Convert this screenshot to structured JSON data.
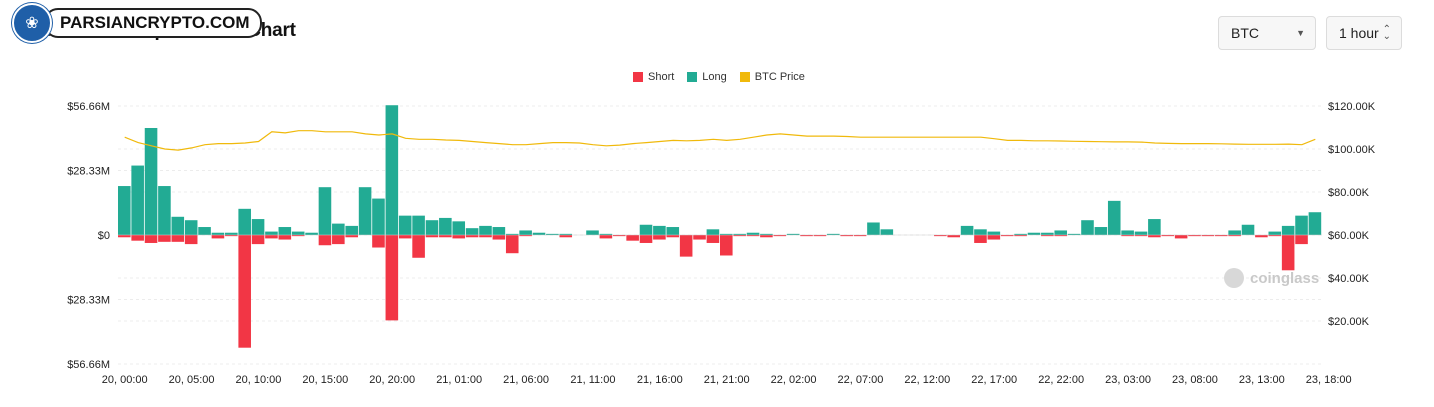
{
  "header": {
    "title": "BTC Total Liquidations Chart",
    "watermark_logo_text": "PARSIANCRYPTO.COM",
    "coin_select": "BTC",
    "interval_select": "1 hour"
  },
  "icons": {
    "coin_caret": "caret-down-icon",
    "interval_stepper": "up-down-icon",
    "logo": "tree-logo-icon",
    "watermark": "coinglass-logo-icon"
  },
  "watermark": "coinglass",
  "colors": {
    "short": "#f23645",
    "long": "#22ab94",
    "price": "#f0b90b"
  },
  "chart_data": {
    "type": "bar",
    "title": "BTC Total Liquidations Chart",
    "legend": [
      "Short",
      "Long",
      "BTC Price"
    ],
    "legend_position": "top-center",
    "grid": true,
    "y_left_ticks": [
      "$56.66M",
      "$28.33M",
      "$0",
      "$28.33M",
      "$56.66M"
    ],
    "y_left_range": [
      -56.66,
      56.66
    ],
    "y_right_ticks": [
      "$120.00K",
      "$100.00K",
      "$80.00K",
      "$60.00K",
      "$40.00K",
      "$20.00K"
    ],
    "y_right_range": [
      0,
      120000
    ],
    "x_ticks": [
      "20, 00:00",
      "20, 05:00",
      "20, 10:00",
      "20, 15:00",
      "20, 20:00",
      "21, 01:00",
      "21, 06:00",
      "21, 11:00",
      "21, 16:00",
      "21, 21:00",
      "22, 02:00",
      "22, 07:00",
      "22, 12:00",
      "22, 17:00",
      "22, 22:00",
      "23, 03:00",
      "23, 08:00",
      "23, 13:00",
      "23, 18:00"
    ],
    "bar_step_hours": 1,
    "series": [
      {
        "name": "Long",
        "unit": "M USD",
        "values": [
          21.5,
          30.5,
          47,
          21.5,
          8,
          6.5,
          3.5,
          1,
          1,
          11.5,
          7,
          1.5,
          3.5,
          1.5,
          1,
          21,
          5,
          4,
          21,
          16,
          57,
          8.5,
          8.5,
          6.5,
          7.5,
          6,
          3,
          4,
          3.5,
          0.5,
          2,
          1,
          0.5,
          0.5,
          0,
          2,
          0.5,
          0,
          0,
          4.5,
          4,
          3.5,
          0,
          0,
          2.5,
          0.5,
          0.5,
          1,
          0.5,
          0,
          0.5,
          0,
          0,
          0.5,
          0,
          0,
          5.5,
          2.5,
          0,
          0,
          0,
          0,
          0,
          4,
          2.5,
          1.5,
          0,
          0.5,
          1,
          1,
          2,
          0.5,
          6.5,
          3.5,
          15,
          2,
          1.5,
          7,
          0,
          0,
          0,
          0,
          0,
          2,
          4.5,
          0,
          1.5,
          4,
          8.5,
          10
        ]
      },
      {
        "name": "Short",
        "unit": "M USD",
        "values": [
          1,
          2.5,
          3.5,
          3,
          3,
          4,
          0,
          1.5,
          0.5,
          49.5,
          4,
          1.5,
          2,
          0.5,
          0,
          4.5,
          4,
          1,
          0,
          5.5,
          37.5,
          1.5,
          10,
          1,
          1,
          1.5,
          1,
          1,
          2,
          8,
          0.5,
          0,
          0,
          1,
          0,
          0,
          1.5,
          0.5,
          2.5,
          3.5,
          2,
          1,
          9.5,
          2,
          3.5,
          9,
          0.5,
          0.5,
          1,
          0.5,
          0,
          0.5,
          0.5,
          0,
          0.5,
          0.5,
          0,
          0,
          0,
          0,
          0,
          0.5,
          1,
          0,
          3.5,
          2,
          0.5,
          0.5,
          0,
          0.5,
          0.5,
          0,
          0,
          0,
          0,
          0.5,
          0.5,
          1,
          0.5,
          1.5,
          0.5,
          0.5,
          0.5,
          0.5,
          0,
          1,
          0.5,
          15.5,
          4,
          0
        ]
      },
      {
        "name": "BTC Price",
        "unit": "USD",
        "values": [
          105500,
          103000,
          101500,
          100000,
          99500,
          100500,
          102000,
          102500,
          102500,
          102800,
          103500,
          108000,
          107500,
          108500,
          108500,
          108000,
          108000,
          108000,
          107000,
          106500,
          107000,
          105000,
          104500,
          104500,
          104200,
          104000,
          103500,
          103000,
          102500,
          102000,
          102000,
          102500,
          103000,
          103000,
          102800,
          102000,
          101500,
          101800,
          102500,
          103000,
          103500,
          104000,
          103800,
          104000,
          104500,
          104000,
          104500,
          105500,
          106500,
          107000,
          106500,
          106000,
          106000,
          106000,
          105800,
          105500,
          105500,
          105500,
          105500,
          105500,
          105500,
          105500,
          105500,
          105500,
          105500,
          104800,
          104000,
          104000,
          103800,
          103800,
          103700,
          103600,
          103500,
          103400,
          103300,
          103300,
          103200,
          102800,
          102600,
          102500,
          102500,
          102500,
          102400,
          102300,
          102200,
          102200,
          102200,
          102300,
          102000,
          104500
        ]
      }
    ]
  }
}
